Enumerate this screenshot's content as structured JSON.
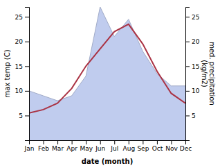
{
  "chart_data": {
    "type": "line",
    "xlabel": "date (month)",
    "ylabel": "max temp (C)",
    "y2label": "med. precipitation\n(kg/m2)",
    "categories": [
      "Jan",
      "Feb",
      "Mar",
      "Apr",
      "May",
      "Jun",
      "Jul",
      "Aug",
      "Sep",
      "Oct",
      "Nov",
      "Dec"
    ],
    "series": [
      {
        "type": "line",
        "color": "#aa3344",
        "values": [
          5.5,
          6.2,
          7.5,
          10.5,
          15.0,
          18.5,
          22.0,
          23.5,
          19.5,
          14.0,
          9.5,
          7.5
        ]
      },
      {
        "type": "area",
        "axis": "y2",
        "color": "#c0ccee",
        "values": [
          10.0,
          9.0,
          8.0,
          9.0,
          13.0,
          27.0,
          21.0,
          24.5,
          18.0,
          13.5,
          11.0,
          11.0
        ]
      }
    ],
    "ylim": [
      0,
      27
    ],
    "yticks": [
      5,
      10,
      15,
      20,
      25
    ],
    "y2lim": [
      0,
      27
    ],
    "y2ticks": [
      5,
      10,
      15,
      20,
      25
    ],
    "grid": false
  }
}
